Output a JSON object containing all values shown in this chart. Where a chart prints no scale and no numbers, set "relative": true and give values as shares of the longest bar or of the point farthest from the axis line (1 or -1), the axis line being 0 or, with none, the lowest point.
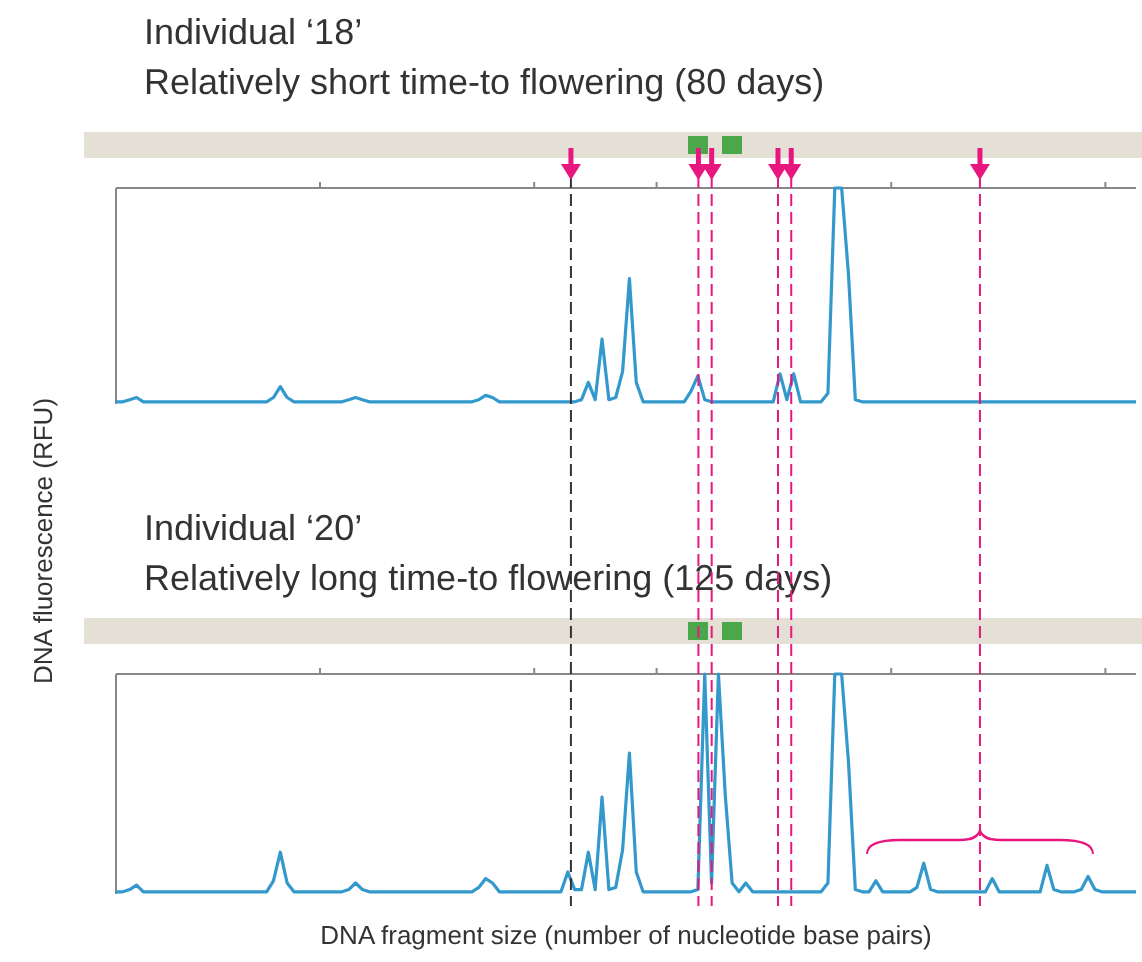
{
  "chart_data": [
    {
      "type": "line",
      "title": "Individual ‘18’",
      "subtitle": "Relatively short time-to flowering  (80 days)",
      "ylabel": "DNA fluorescence (RFU)",
      "relative": true,
      "categories": [
        null,
        null,
        null,
        null,
        null,
        null,
        null,
        null,
        null,
        null,
        null,
        null,
        null,
        null,
        null,
        null,
        null,
        null,
        null,
        null,
        null,
        null,
        null,
        null,
        null,
        null,
        null,
        null,
        null,
        null,
        null,
        null,
        null,
        null,
        null,
        null,
        null,
        null,
        null,
        null,
        null,
        null,
        null,
        null,
        null,
        null,
        null,
        null,
        null,
        null,
        null,
        null,
        null,
        null,
        null,
        null,
        null,
        null,
        null,
        null,
        null,
        null,
        null,
        null,
        null,
        null,
        null,
        null,
        null,
        null,
        null,
        null,
        null,
        null,
        null,
        null,
        null,
        null,
        null,
        null,
        null,
        null,
        null,
        null,
        null,
        null,
        null,
        null,
        null,
        null,
        null,
        null,
        null,
        null,
        null,
        null,
        null,
        null,
        null,
        null,
        null,
        null,
        null,
        null,
        null,
        null,
        null,
        null,
        null,
        null,
        null,
        null,
        null,
        null,
        null,
        null,
        null,
        null,
        null,
        null,
        null,
        null,
        null,
        null,
        null,
        null,
        null,
        null,
        null,
        null,
        null,
        null,
        null,
        null,
        null,
        null,
        null,
        null,
        null,
        null,
        null,
        null,
        null,
        null,
        null,
        null,
        null,
        null,
        null,
        null
      ],
      "series": [
        {
          "color": "#3399cc",
          "values": [
            0.01,
            0.01,
            0.02,
            0.03,
            0.01,
            0.01,
            0.01,
            0.01,
            0.01,
            0.01,
            0.01,
            0.01,
            0.01,
            0.01,
            0.01,
            0.01,
            0.01,
            0.01,
            0.01,
            0.01,
            0.01,
            0.01,
            0.01,
            0.03,
            0.08,
            0.03,
            0.01,
            0.01,
            0.01,
            0.01,
            0.01,
            0.01,
            0.01,
            0.01,
            0.02,
            0.03,
            0.02,
            0.01,
            0.01,
            0.01,
            0.01,
            0.01,
            0.01,
            0.01,
            0.01,
            0.01,
            0.01,
            0.01,
            0.01,
            0.01,
            0.01,
            0.01,
            0.01,
            0.02,
            0.04,
            0.03,
            0.01,
            0.01,
            0.01,
            0.01,
            0.01,
            0.01,
            0.01,
            0.01,
            0.01,
            0.01,
            0.01,
            0.01,
            0.02,
            0.1,
            0.02,
            0.3,
            0.02,
            0.03,
            0.15,
            0.58,
            0.1,
            0.01,
            0.01,
            0.01,
            0.01,
            0.01,
            0.01,
            0.01,
            0.06,
            0.13,
            0.02,
            0.01,
            0.01,
            0.01,
            0.01,
            0.01,
            0.01,
            0.01,
            0.01,
            0.01,
            0.01,
            0.14,
            0.02,
            0.14,
            0.01,
            0.01,
            0.01,
            0.01,
            0.05,
            1,
            1,
            0.6,
            0.02,
            0.01,
            0.01,
            0.01,
            0.01,
            0.01,
            0.01,
            0.01,
            0.01,
            0.01,
            0.01,
            0.01,
            0.01,
            0.01,
            0.01,
            0.01,
            0.01,
            0.01,
            0.01,
            0.01,
            0.01,
            0.01,
            0.01,
            0.01,
            0.01,
            0.01,
            0.01,
            0.01,
            0.01,
            0.01,
            0.01,
            0.01,
            0.01,
            0.01,
            0.01,
            0.01,
            0.01,
            0.01,
            0.01,
            0.01,
            0.01,
            0.01
          ]
        }
      ]
    },
    {
      "type": "line",
      "title": "Individual ‘20’",
      "subtitle": "Relatively long time-to flowering  (125 days)",
      "xlabel": "DNA fragment size (number of nucleotide base pairs)",
      "relative": true,
      "categories": [
        null,
        null,
        null,
        null,
        null,
        null,
        null,
        null,
        null,
        null,
        null,
        null,
        null,
        null,
        null,
        null,
        null,
        null,
        null,
        null,
        null,
        null,
        null,
        null,
        null,
        null,
        null,
        null,
        null,
        null,
        null,
        null,
        null,
        null,
        null,
        null,
        null,
        null,
        null,
        null,
        null,
        null,
        null,
        null,
        null,
        null,
        null,
        null,
        null,
        null,
        null,
        null,
        null,
        null,
        null,
        null,
        null,
        null,
        null,
        null,
        null,
        null,
        null,
        null,
        null,
        null,
        null,
        null,
        null,
        null,
        null,
        null,
        null,
        null,
        null,
        null,
        null,
        null,
        null,
        null,
        null,
        null,
        null,
        null,
        null,
        null,
        null,
        null,
        null,
        null,
        null,
        null,
        null,
        null,
        null,
        null,
        null,
        null,
        null,
        null,
        null,
        null,
        null,
        null,
        null,
        null,
        null,
        null,
        null,
        null,
        null,
        null,
        null,
        null,
        null,
        null,
        null,
        null,
        null,
        null,
        null,
        null,
        null,
        null,
        null,
        null,
        null,
        null,
        null,
        null,
        null,
        null,
        null,
        null,
        null,
        null,
        null,
        null,
        null,
        null,
        null,
        null,
        null,
        null,
        null,
        null,
        null,
        null,
        null,
        null
      ],
      "series": [
        {
          "color": "#3399cc",
          "values": [
            0.01,
            0.01,
            0.02,
            0.04,
            0.01,
            0.01,
            0.01,
            0.01,
            0.01,
            0.01,
            0.01,
            0.01,
            0.01,
            0.01,
            0.01,
            0.01,
            0.01,
            0.01,
            0.01,
            0.01,
            0.01,
            0.01,
            0.01,
            0.06,
            0.19,
            0.05,
            0.01,
            0.01,
            0.01,
            0.01,
            0.01,
            0.01,
            0.01,
            0.01,
            0.02,
            0.05,
            0.02,
            0.01,
            0.01,
            0.01,
            0.01,
            0.01,
            0.01,
            0.01,
            0.01,
            0.01,
            0.01,
            0.01,
            0.01,
            0.01,
            0.01,
            0.01,
            0.01,
            0.03,
            0.07,
            0.05,
            0.01,
            0.01,
            0.01,
            0.01,
            0.01,
            0.01,
            0.01,
            0.01,
            0.01,
            0.01,
            0.1,
            0.02,
            0.02,
            0.19,
            0.02,
            0.44,
            0.02,
            0.03,
            0.2,
            0.64,
            0.1,
            0.01,
            0.01,
            0.01,
            0.01,
            0.01,
            0.01,
            0.01,
            0.01,
            0.02,
            1,
            0.05,
            1,
            0.45,
            0.05,
            0.01,
            0.05,
            0.01,
            0.01,
            0.01,
            0.01,
            0.01,
            0.01,
            0.01,
            0.01,
            0.01,
            0.01,
            0.01,
            0.05,
            1,
            1,
            0.6,
            0.02,
            0.01,
            0.01,
            0.06,
            0.01,
            0.01,
            0.01,
            0.01,
            0.01,
            0.03,
            0.14,
            0.02,
            0.01,
            0.01,
            0.01,
            0.01,
            0.01,
            0.01,
            0.01,
            0.01,
            0.07,
            0.01,
            0.01,
            0.01,
            0.01,
            0.01,
            0.01,
            0.01,
            0.13,
            0.02,
            0.01,
            0.01,
            0.01,
            0.02,
            0.08,
            0.02,
            0.01,
            0.01,
            0.01,
            0.01,
            0.01,
            0.01
          ]
        }
      ]
    }
  ]
}
